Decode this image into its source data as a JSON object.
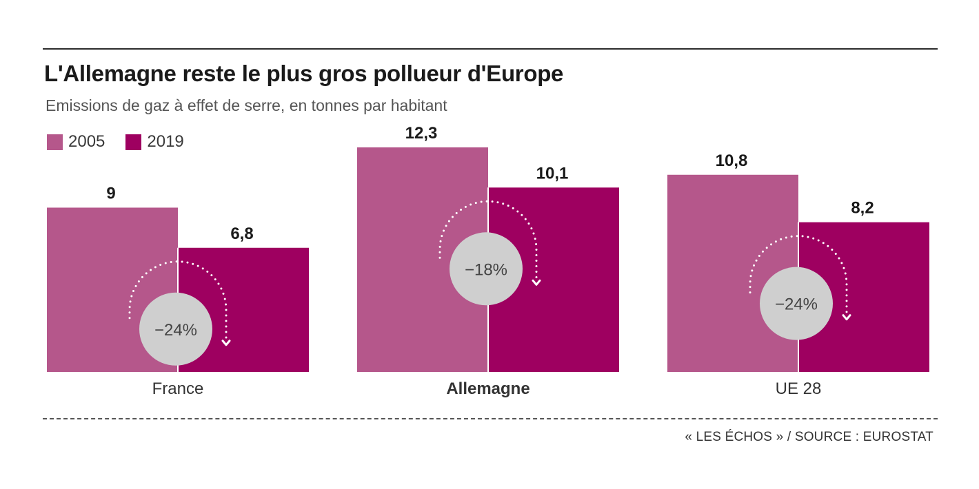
{
  "chart_data": {
    "type": "bar",
    "title": "L'Allemagne reste le plus gros pollueur d'Europe",
    "subtitle": "Emissions de gaz à effet de serre, en tonnes par habitant",
    "categories": [
      "France",
      "Allemagne",
      "UE 28"
    ],
    "highlight_category": "Allemagne",
    "series": [
      {
        "name": "2005",
        "color": "#b5578b",
        "values": [
          9,
          12.3,
          10.8
        ]
      },
      {
        "name": "2019",
        "color": "#9e0060",
        "values": [
          6.8,
          10.1,
          8.2
        ]
      }
    ],
    "value_labels": [
      [
        "9",
        "6,8"
      ],
      [
        "12,3",
        "10,1"
      ],
      [
        "10,8",
        "8,2"
      ]
    ],
    "changes": [
      "−24%",
      "−18%",
      "−24%"
    ],
    "ylim": [
      0,
      12.3
    ],
    "grid": false,
    "legend_position": "top-left",
    "source": "« LES ÉCHOS » / SOURCE : EUROSTAT"
  }
}
